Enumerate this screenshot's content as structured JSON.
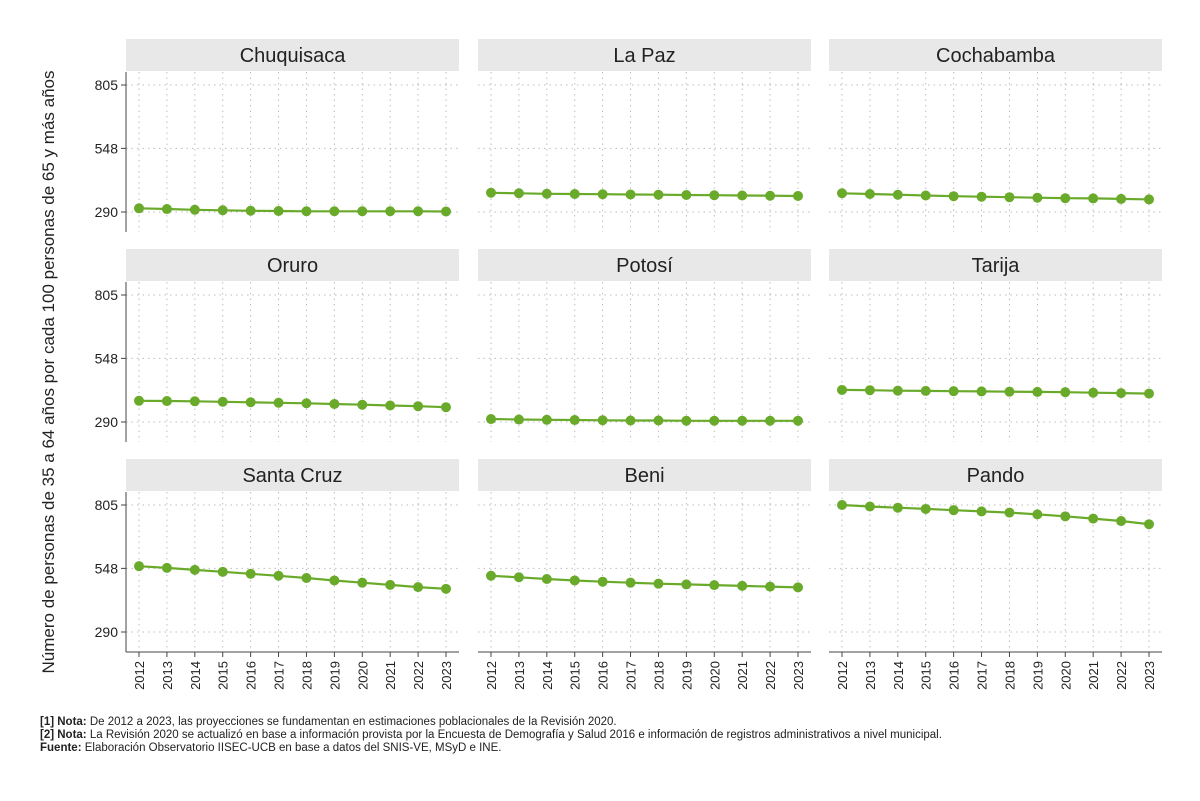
{
  "chart_data": {
    "type": "line",
    "ylabel": "Número de personas de 35 a 64 años por cada 100 personas de 65 y más años",
    "xlabel": "",
    "x": [
      "2012",
      "2013",
      "2014",
      "2015",
      "2016",
      "2017",
      "2018",
      "2019",
      "2020",
      "2021",
      "2022",
      "2023"
    ],
    "ylim": [
      290,
      805
    ],
    "yticks": [
      290,
      548,
      805
    ],
    "grid": true,
    "colors": {
      "line": "#6aaa2a",
      "point": "#6aaa2a",
      "strip": "#e8e8e8",
      "grid": "#bdbdbd"
    },
    "panels": [
      {
        "name": "Chuquisaca",
        "values": [
          305,
          302,
          299,
          297,
          295,
          294,
          293,
          293,
          293,
          293,
          293,
          292
        ]
      },
      {
        "name": "La Paz",
        "values": [
          368,
          366,
          364,
          363,
          362,
          361,
          360,
          359,
          358,
          357,
          356,
          355
        ]
      },
      {
        "name": "Cochabamba",
        "values": [
          366,
          363,
          360,
          357,
          354,
          352,
          350,
          348,
          346,
          345,
          343,
          341
        ]
      },
      {
        "name": "Oruro",
        "values": [
          376,
          375,
          374,
          372,
          370,
          368,
          366,
          363,
          360,
          357,
          354,
          350
        ]
      },
      {
        "name": "Potosí",
        "values": [
          302,
          300,
          299,
          298,
          297,
          296,
          296,
          295,
          295,
          295,
          295,
          295
        ]
      },
      {
        "name": "Tarija",
        "values": [
          420,
          419,
          417,
          416,
          415,
          414,
          413,
          412,
          411,
          409,
          407,
          405
        ]
      },
      {
        "name": "Santa Cruz",
        "values": [
          557,
          550,
          542,
          534,
          526,
          518,
          509,
          499,
          490,
          481,
          472,
          465
        ]
      },
      {
        "name": "Beni",
        "values": [
          518,
          512,
          505,
          499,
          494,
          490,
          486,
          483,
          480,
          477,
          474,
          471
        ]
      },
      {
        "name": "Pando",
        "values": [
          805,
          799,
          794,
          789,
          784,
          779,
          774,
          767,
          759,
          750,
          740,
          727
        ]
      }
    ]
  },
  "notes": [
    {
      "label": "[1] Nota:",
      "text": " De 2012 a 2023, las proyecciones se fundamentan en estimaciones poblacionales de la Revisión 2020."
    },
    {
      "label": "[2] Nota:",
      "text": " La Revisión 2020 se actualizó en base a información provista por la Encuesta de Demografía y Salud 2016 e información de registros administrativos a nivel municipal."
    },
    {
      "label": "Fuente:",
      "text": " Elaboración Observatorio IISEC-UCB en base a datos del SNIS-VE, MSyD e INE."
    }
  ]
}
